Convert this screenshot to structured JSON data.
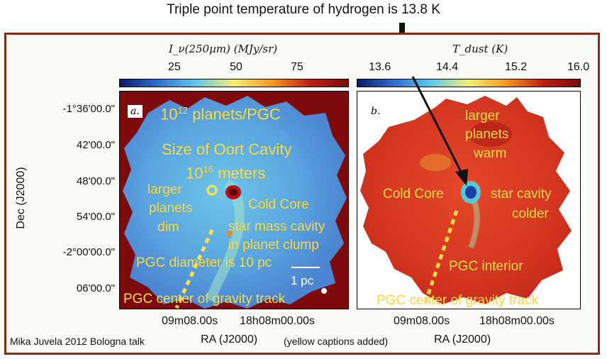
{
  "top_annotation": "Triple point temperature of  hydrogen is 13.8 K",
  "colorbars": {
    "left": {
      "title": "I_ν(250µm) (MJy/sr)",
      "ticks": [
        "25",
        "50",
        "75"
      ],
      "colors": [
        "#0a1a6e",
        "#2d6fd0",
        "#5fc8f0",
        "#f4f070",
        "#f59a20",
        "#c21d10",
        "#7a0a0a"
      ]
    },
    "right": {
      "title": "T_dust (K)",
      "ticks": [
        "13.6",
        "14.4",
        "15.2",
        "16.0"
      ],
      "colors": [
        "#0a1a6e",
        "#2d6fd0",
        "#5fc8f0",
        "#f4f070",
        "#f59a20",
        "#c21d10",
        "#7a0a0a"
      ]
    }
  },
  "axes": {
    "dec_ticks": [
      "-1°36'00.0\"",
      "42'00.0\"",
      "48'00.0\"",
      "54'00.0\"",
      "-2°00'00.0\"",
      "06'00.0\""
    ],
    "dec_label": "Dec (J2000)",
    "ra_ticks_left": [
      "09m08.00s",
      "18h08m00.00s"
    ],
    "ra_ticks_right": [
      "09m08.00s",
      "18h08m00.00s"
    ],
    "ra_label": "RA (J2000)"
  },
  "panel_a": {
    "label": "a.",
    "captions": {
      "planets_base": "10",
      "planets_exp": "12",
      "planets_rest": " planets/PGC",
      "oort": "Size of Oort Cavity",
      "meters_base": "10",
      "meters_exp": "16",
      "meters_rest": " meters",
      "larger_planets": [
        "larger",
        "planets",
        "dim"
      ],
      "cold_core": "Cold Core",
      "cavity": [
        "star mass cavity",
        "in planet clump"
      ],
      "diameter": "PGC diameter is 10 pc",
      "scale": "1 pc",
      "track": "PGC center of gravity track"
    }
  },
  "panel_b": {
    "label": "b.",
    "captions": {
      "larger_planets": [
        "larger",
        "planets",
        "warm"
      ],
      "cold_core": "Cold Core",
      "star_cavity": [
        "star cavity",
        "colder"
      ],
      "interior": "PGC interior",
      "track": "PGC center of gravity track"
    }
  },
  "footer": {
    "credit": "Mika Juvela 2012 Bologna talk",
    "added": "(yellow captions added)"
  }
}
